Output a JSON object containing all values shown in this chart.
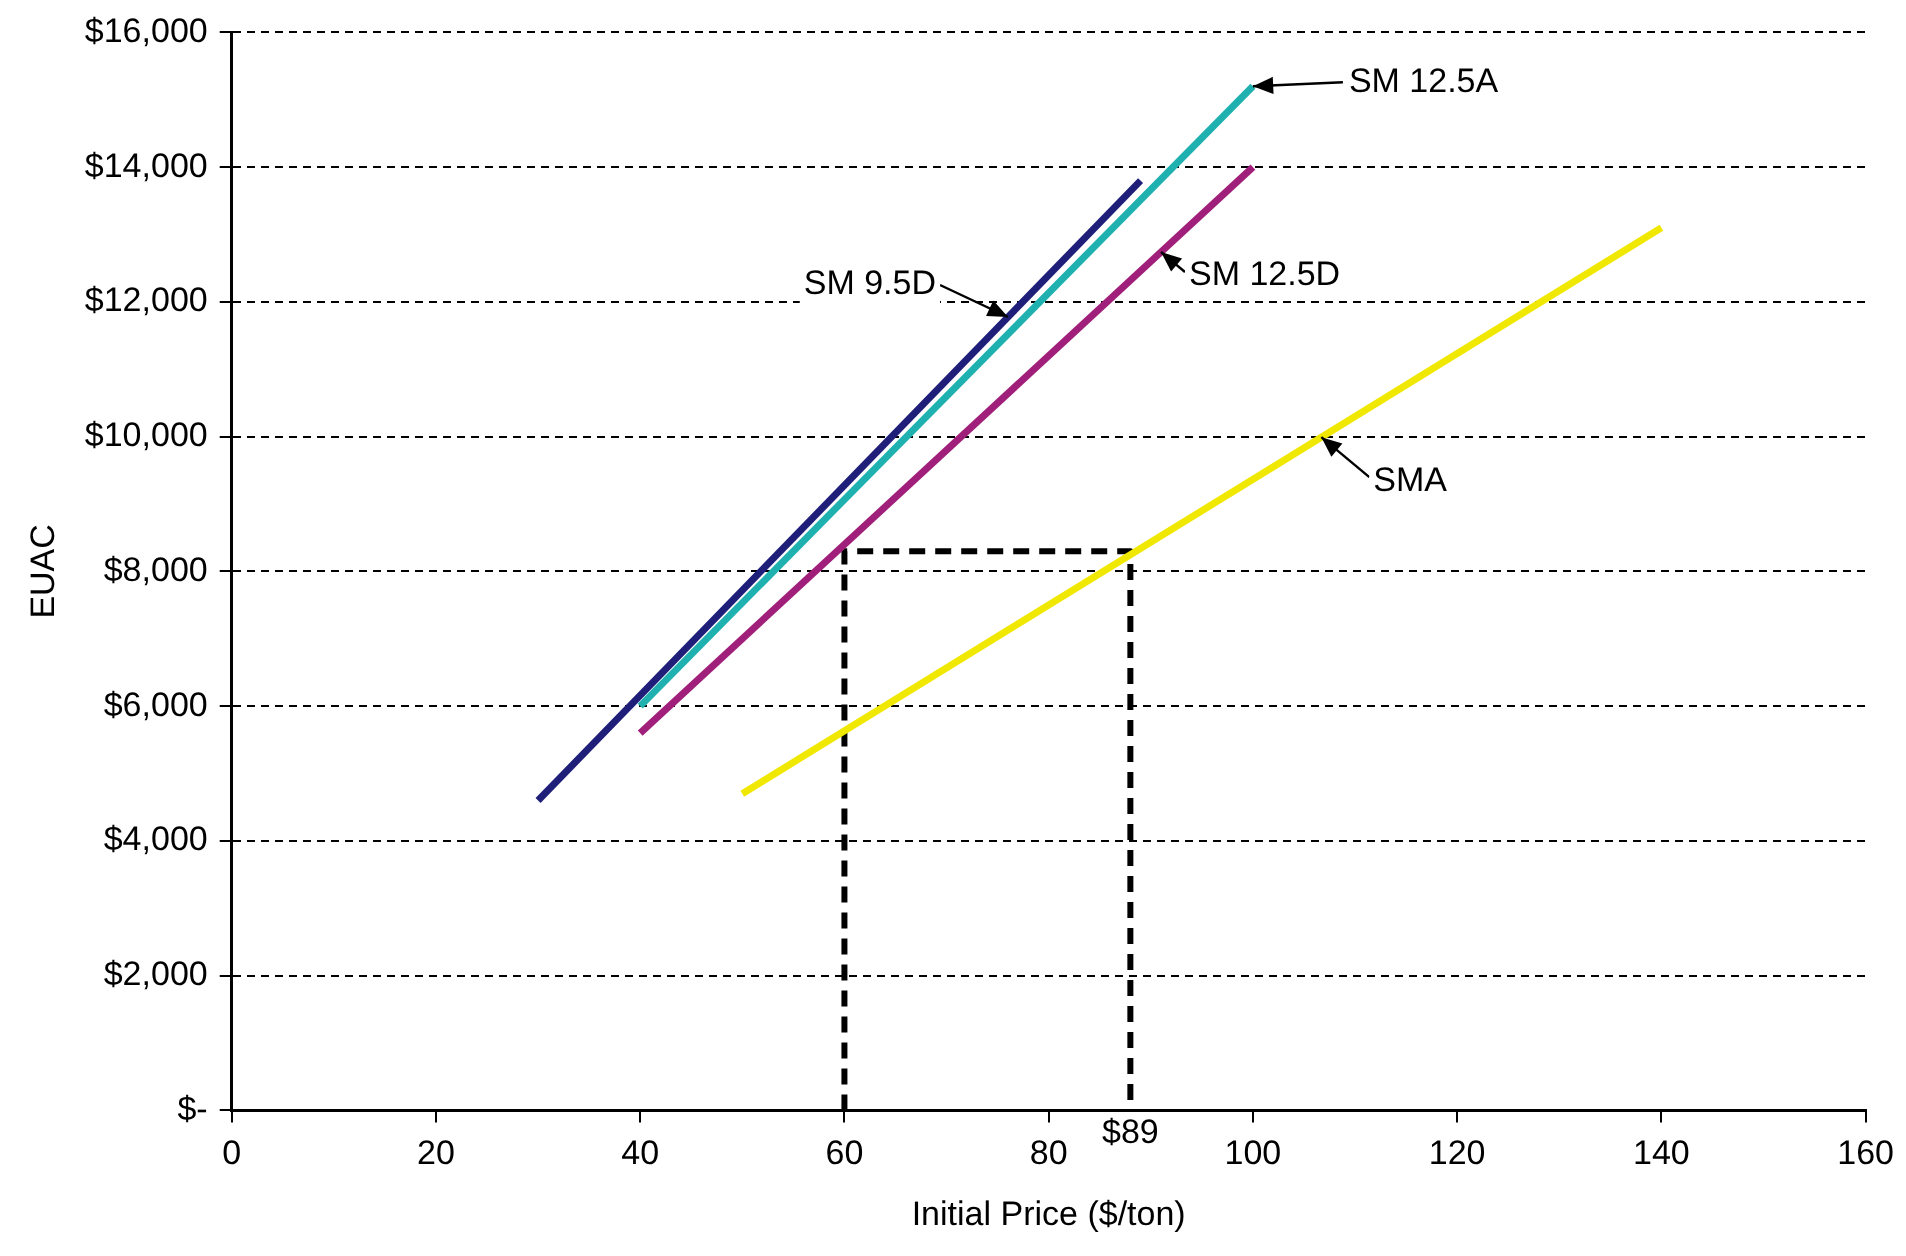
{
  "chart_data": {
    "type": "line",
    "xlabel": "Initial Price ($/ton)",
    "ylabel": "EUAC",
    "xlim": [
      0,
      160
    ],
    "xticks": [
      0,
      20,
      40,
      60,
      80,
      100,
      120,
      140,
      160
    ],
    "ylim": [
      0,
      16000
    ],
    "yticks": [
      {
        "value": 0,
        "label": "$-"
      },
      {
        "value": 2000,
        "label": "$2,000"
      },
      {
        "value": 4000,
        "label": "$4,000"
      },
      {
        "value": 6000,
        "label": "$6,000"
      },
      {
        "value": 8000,
        "label": "$8,000"
      },
      {
        "value": 10000,
        "label": "$10,000"
      },
      {
        "value": 12000,
        "label": "$12,000"
      },
      {
        "value": 14000,
        "label": "$14,000"
      },
      {
        "value": 16000,
        "label": "$16,000"
      }
    ],
    "grid": "y",
    "legend": false,
    "marker": "none",
    "line_style": "solid",
    "series": [
      {
        "name": "SM 9.5D",
        "color": "#1f1f7a",
        "x": [
          30,
          89
        ],
        "values": [
          4600,
          13800
        ]
      },
      {
        "name": "SM 12.5A",
        "color": "#1fb0b0",
        "x": [
          40,
          100
        ],
        "values": [
          6000,
          15200
        ]
      },
      {
        "name": "SM 12.5D",
        "color": "#a01f7a",
        "x": [
          40,
          100
        ],
        "values": [
          5600,
          14000
        ]
      },
      {
        "name": "SMA",
        "color": "#f0e800",
        "x": [
          50,
          140
        ],
        "values": [
          4700,
          13100
        ]
      },
      {
        "color": "#000000",
        "line_style": "dashed",
        "x": [
          60,
          60,
          88,
          88
        ],
        "values": [
          0,
          8300,
          8300,
          0
        ]
      }
    ],
    "annotations": [
      {
        "text": "$89",
        "x": 88,
        "y": 0
      }
    ]
  }
}
